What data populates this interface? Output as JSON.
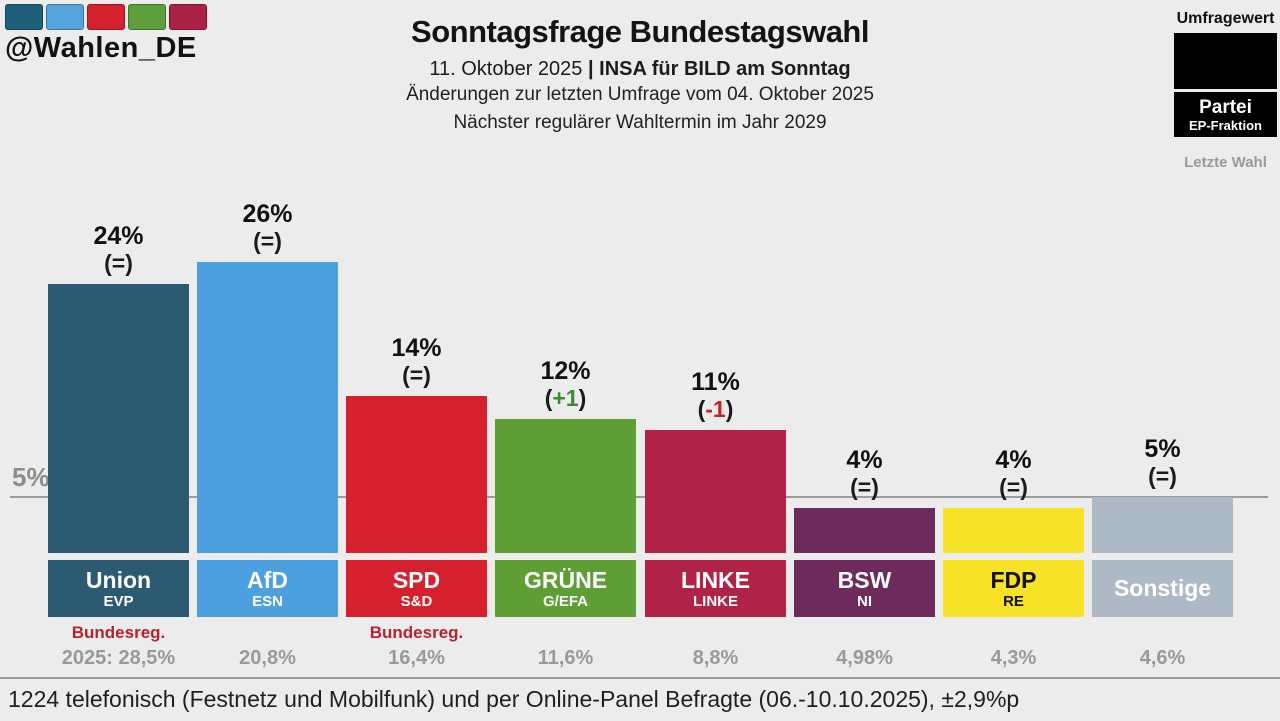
{
  "branding": {
    "handle": "@Wahlen_DE",
    "swatch_colors": [
      "#1f5e79",
      "#55a3dc",
      "#d5212e",
      "#5f9e3c",
      "#aa2143"
    ]
  },
  "header": {
    "title": "Sonntagsfrage Bundestagswahl",
    "subtitle_date": "11. Oktober 2025",
    "subtitle_source": "| INSA für BILD am Sonntag",
    "subtitle_line2": "Änderungen zur letzten Umfrage vom 04. Oktober 2025",
    "subtitle_line3": "Nächster regulärer Wahltermin im Jahr 2029"
  },
  "legend": {
    "top_label": "Umfragewert",
    "box_title": "Partei",
    "box_subtitle": "EP-Fraktion",
    "bottom_label": "Letzte Wahl"
  },
  "chart_data": {
    "type": "bar",
    "title": "Sonntagsfrage Bundestagswahl",
    "unit": "%",
    "ylim": [
      0,
      28
    ],
    "threshold_value": 5,
    "threshold_label": "5%",
    "categories": [
      "Union",
      "AfD",
      "SPD",
      "GRÜNE",
      "LINKE",
      "BSW",
      "FDP",
      "Sonstige"
    ],
    "values": [
      24,
      26,
      14,
      12,
      11,
      4,
      4,
      5
    ],
    "value_labels": [
      "24%",
      "26%",
      "14%",
      "12%",
      "11%",
      "4%",
      "4%",
      "5%"
    ],
    "changes": [
      "=",
      "=",
      "=",
      "+1",
      "-1",
      "=",
      "=",
      "="
    ],
    "change_types": [
      "equal",
      "equal",
      "equal",
      "plus",
      "minus",
      "equal",
      "equal",
      "equal"
    ],
    "ep_groups": [
      "EVP",
      "ESN",
      "S&D",
      "G/EFA",
      "LINKE",
      "NI",
      "RE",
      ""
    ],
    "notes": [
      "Bundesreg.",
      "",
      "Bundesreg.",
      "",
      "",
      "",
      "",
      ""
    ],
    "last_election": [
      "2025: 28,5%",
      "20,8%",
      "16,4%",
      "11,6%",
      "8,8%",
      "4,98%",
      "4,3%",
      "4,6%"
    ],
    "bar_colors": [
      "#2b5a72",
      "#4da0e0",
      "#d5202e",
      "#5f9e34",
      "#b02346",
      "#6d2b5b",
      "#f7e228",
      "#aeb9c6"
    ],
    "label_text_colors": [
      "#ffffff",
      "#ffffff",
      "#ffffff",
      "#ffffff",
      "#ffffff",
      "#ffffff",
      "#111111",
      "#ffffff"
    ]
  },
  "colors": {
    "background": "#ececec",
    "change_equal": "#1a1a1a",
    "change_plus": "#3a8a2f",
    "change_minus": "#bf2626",
    "note_red": "#b3242c",
    "muted_gray": "#999999",
    "threshold_line": "#9c9c9c"
  },
  "footer": {
    "text": "1224 telefonisch (Festnetz und Mobilfunk) und per Online-Panel Befragte (06.-10.10.2025), ±2,9%p"
  }
}
